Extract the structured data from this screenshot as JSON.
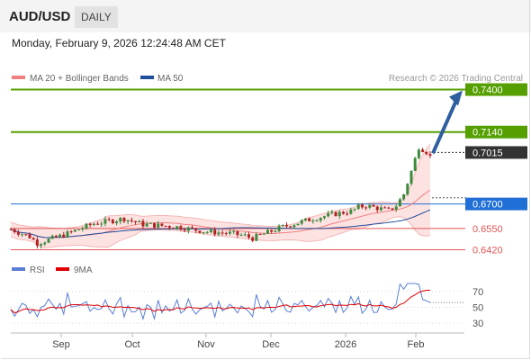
{
  "header": {
    "symbol": "AUD/USD",
    "timeframe": "DAILY",
    "datetime": "Monday, February 9, 2026 12:24:48 AM CET"
  },
  "legend": {
    "bb_label": "MA 20 + Bollinger Bands",
    "ma50_label": "MA 50",
    "credit": "Research © 2026 Trading Central",
    "rsi_label": "RSI",
    "rsi_ma_label": "9MA"
  },
  "colors": {
    "up_candle": "#3d8a3d",
    "down_candle": "#b22222",
    "bb_fill": "#fde2e2",
    "bb_line": "#f08080",
    "ma50": "#1f4e9c",
    "resistance": "#55a000",
    "support": "#e25555",
    "pivot": "#1f6fd6",
    "current": "#333333",
    "arrow": "#2f5f9e",
    "rsi": "#5b7fd6",
    "rsi_ma": "#e00000"
  },
  "chart_data": [
    {
      "type": "candlestick",
      "title": "AUD/USD",
      "timeframe": "DAILY",
      "x_labels": [
        "Sep",
        "Oct",
        "Nov",
        "Dec",
        "2026",
        "Feb"
      ],
      "price_range": [
        0.6395,
        0.7425
      ],
      "current_price": 0.7015,
      "levels": [
        {
          "value": 0.74,
          "label": "0.7400",
          "kind": "resistance"
        },
        {
          "value": 0.714,
          "label": "0.7140",
          "kind": "resistance"
        },
        {
          "value": 0.7015,
          "label": "0.7015",
          "kind": "current"
        },
        {
          "value": 0.67,
          "label": "0.6700",
          "kind": "pivot"
        },
        {
          "value": 0.655,
          "label": "0.6550",
          "kind": "support"
        },
        {
          "value": 0.642,
          "label": "0.6420",
          "kind": "support"
        }
      ],
      "forecast_arrow": {
        "from": 0.701,
        "to": 0.74
      },
      "series": [
        {
          "name": "MA 20 + Bollinger Bands"
        },
        {
          "name": "MA 50"
        }
      ]
    },
    {
      "type": "line",
      "title": "RSI",
      "y_ticks": [
        70,
        50,
        30
      ],
      "ylim": [
        20,
        80
      ],
      "series": [
        {
          "name": "RSI"
        },
        {
          "name": "9MA"
        }
      ]
    }
  ]
}
